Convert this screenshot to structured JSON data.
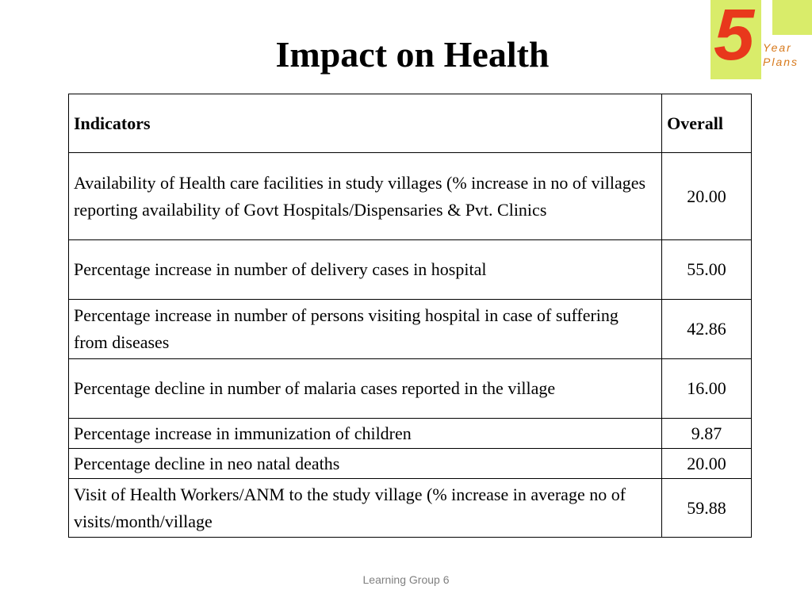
{
  "slide": {
    "title": "Impact on Health",
    "footer": "Learning Group 6"
  },
  "logo": {
    "number": "5",
    "word1": "Year",
    "word2": "Plans",
    "colors": {
      "background": "#d9ec6a",
      "number": "#e8381c",
      "text": "#d7781a"
    }
  },
  "table": {
    "headers": [
      "Indicators",
      "Overall"
    ],
    "rows": [
      {
        "indicator": "Availability of Health care facilities in study villages (% increase in no of villages reporting availability of Govt Hospitals/Dispensaries & Pvt. Clinics",
        "overall": "20.00"
      },
      {
        "indicator": "Percentage increase in number of delivery cases in hospital",
        "overall": "55.00"
      },
      {
        "indicator": "Percentage increase in number of persons visiting hospital in case of suffering from diseases",
        "overall": "42.86"
      },
      {
        "indicator": "Percentage decline in number of malaria cases reported in the village",
        "overall": "16.00"
      },
      {
        "indicator": "Percentage increase in immunization of children",
        "overall": "9.87"
      },
      {
        "indicator": "Percentage decline in neo natal deaths",
        "overall": "20.00"
      },
      {
        "indicator": "Visit of Health Workers/ANM to the study village (% increase in average no of visits/month/village",
        "overall": "59.88"
      }
    ]
  }
}
